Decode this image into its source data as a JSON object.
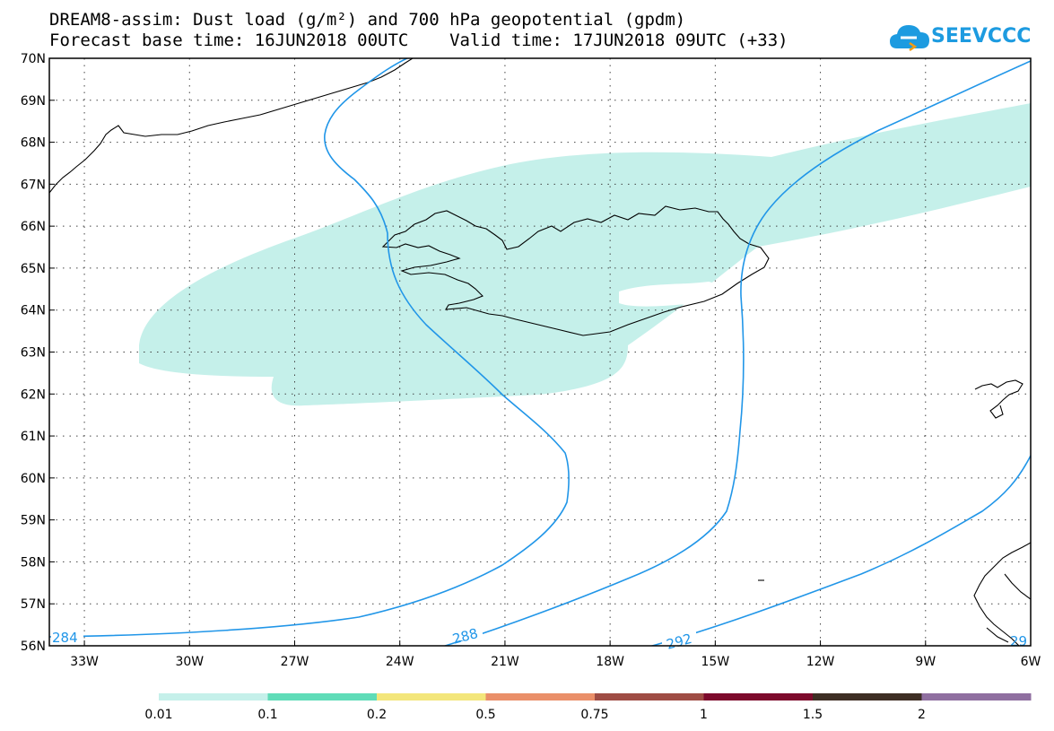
{
  "title": {
    "line1": "DREAM8-assim: Dust load (g/m²) and 700 hPa geopotential (gpdm)",
    "line2": "Forecast base time: 16JUN2018 00UTC    Valid time: 17JUN2018 09UTC (+33)"
  },
  "logo": {
    "text": "SEEVCCC",
    "icon": "cloud-logo-icon"
  },
  "map": {
    "region": "North Atlantic / Iceland",
    "lat_range": [
      56,
      70
    ],
    "lon_range": [
      -34,
      -6
    ],
    "lat_ticks": [
      "56N",
      "57N",
      "58N",
      "59N",
      "60N",
      "61N",
      "62N",
      "63N",
      "64N",
      "65N",
      "66N",
      "67N",
      "68N",
      "69N",
      "70N"
    ],
    "lon_ticks": [
      "33W",
      "30W",
      "27W",
      "24W",
      "21W",
      "18W",
      "15W",
      "12W",
      "9W",
      "6W"
    ],
    "grid": "dotted",
    "contour_color": "#2196e8",
    "dust_fill_color": "#c5f0ea",
    "contour_labels": [
      "284",
      "288",
      "292",
      "29"
    ]
  },
  "colorbar": {
    "colors": [
      "#c5f0ea",
      "#5fdcb8",
      "#f3e67b",
      "#ea8f69",
      "#9f4c44",
      "#7d0a2c",
      "#3e2e24",
      "#8f6fa0"
    ],
    "labels": [
      "0.01",
      "0.1",
      "0.2",
      "0.5",
      "0.75",
      "1",
      "1.5",
      "2"
    ]
  }
}
